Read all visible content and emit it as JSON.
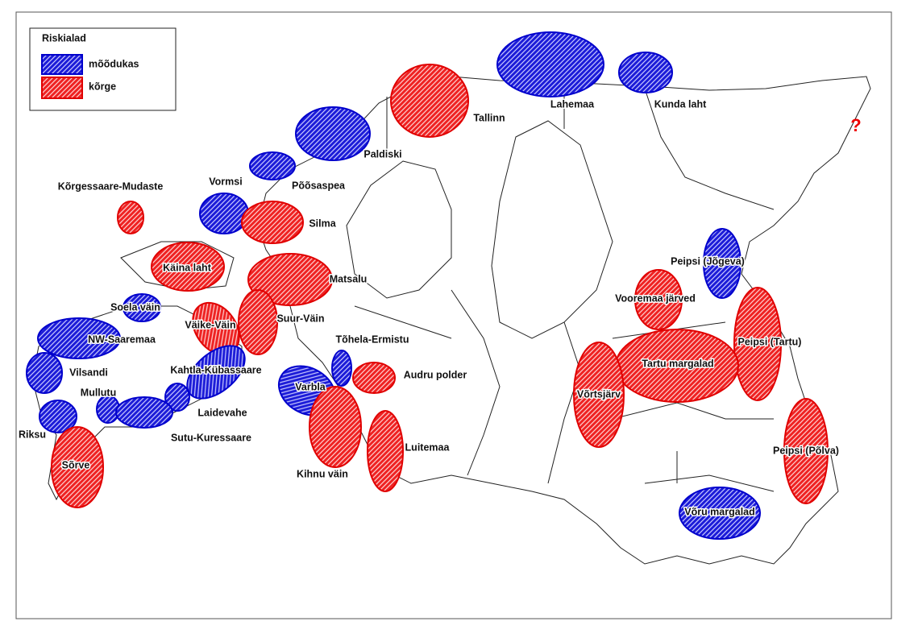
{
  "legend": {
    "title": "Riskialad",
    "items": [
      "mõõdukas",
      "kõrge"
    ]
  },
  "unknown_mark": "?",
  "areas": [
    "Kõrgessaare-Mudaste",
    "Vormsi",
    "Silma",
    "Paldiski",
    "Põõsaspea",
    "Tallinn",
    "Lahemaa",
    "Kunda laht",
    "Käina laht",
    "Matsalu",
    "Soela väin",
    "Väike-Väin",
    "Suur-Väin",
    "NW-Saaremaa",
    "Tõhela-Ermistu",
    "Audru polder",
    "Vilsandi",
    "Kahtla-Kübassaare",
    "Mullutu",
    "Laidevahe",
    "Varbla",
    "Sutu-Kuressaare",
    "Riksu",
    "Sõrve",
    "Kihnu väin",
    "Luitemaa",
    "Peipsi (Jõgeva)",
    "Vooremaa järved",
    "Peipsi (Tartu)",
    "Tartu margalad",
    "Võrtsjärv",
    "Peipsi (Põlva)",
    "Võru margalad"
  ]
}
